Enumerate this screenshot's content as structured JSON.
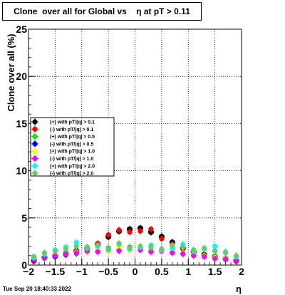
{
  "title": "Clone  over all for Global vs    η at pT > 0.11",
  "footer": "Tue Sep 20 18:40:33 2022",
  "chart_data": {
    "type": "scatter",
    "title": "Clone  over all for Global vs    η at pT > 0.11",
    "xlabel": "η",
    "ylabel": "Clone  over all (%)",
    "xlim": [
      -2,
      2
    ],
    "ylim": [
      0,
      25
    ],
    "x_ticks": [
      "−2",
      "−1.5",
      "−1",
      "−0.5",
      "0",
      "0.5",
      "1",
      "1.5",
      "2"
    ],
    "y_ticks": [
      "0",
      "5",
      "10",
      "15",
      "20",
      "25"
    ],
    "grid": true,
    "legend_position": "center-left",
    "x": [
      -1.9,
      -1.7,
      -1.5,
      -1.3,
      -1.1,
      -0.9,
      -0.7,
      -0.5,
      -0.3,
      -0.1,
      0.1,
      0.3,
      0.5,
      0.7,
      0.9,
      1.1,
      1.3,
      1.5,
      1.7,
      1.9
    ],
    "series": [
      {
        "name": "(+) with pT/|q| > 0.1",
        "color": "#000000",
        "marker": "circle",
        "values": [
          0.5,
          0.8,
          1.0,
          1.2,
          1.5,
          1.8,
          2.2,
          3.0,
          3.6,
          3.8,
          3.9,
          3.5,
          3.0,
          2.4,
          1.8,
          1.4,
          1.1,
          0.9,
          0.7,
          0.5
        ]
      },
      {
        "name": "(-) with pT/|q| > 0.1",
        "color": "#ff0000",
        "marker": "circle",
        "values": [
          0.4,
          0.7,
          0.9,
          1.1,
          1.4,
          1.8,
          2.3,
          3.2,
          3.7,
          3.5,
          3.6,
          3.8,
          2.8,
          2.2,
          1.7,
          1.3,
          1.0,
          0.8,
          0.6,
          0.4
        ]
      },
      {
        "name": "(+) with pT/|q| > 0.5",
        "color": "#00ee00",
        "marker": "circle",
        "values": [
          0.6,
          0.7,
          1.0,
          1.3,
          1.2,
          1.5,
          1.6,
          1.8,
          1.7,
          1.9,
          1.8,
          1.6,
          1.5,
          1.7,
          1.3,
          1.2,
          1.0,
          0.9,
          0.7,
          0.6
        ]
      },
      {
        "name": "(-) with pT/|q| > 0.5",
        "color": "#0000ff",
        "marker": "circle",
        "values": [
          0.5,
          0.8,
          0.9,
          1.1,
          1.3,
          1.4,
          1.5,
          1.7,
          1.6,
          1.8,
          1.7,
          1.5,
          1.6,
          1.4,
          1.2,
          1.1,
          0.9,
          0.8,
          0.6,
          0.5
        ]
      },
      {
        "name": "(+) with pT/|q| > 1.0",
        "color": "#ffff00",
        "marker": "circle",
        "values": [
          0.7,
          0.9,
          1.1,
          1.2,
          1.4,
          1.3,
          1.6,
          1.5,
          1.8,
          1.6,
          1.7,
          1.5,
          1.4,
          1.6,
          1.3,
          1.1,
          1.0,
          0.8,
          0.7,
          0.6
        ]
      },
      {
        "name": "(-) with pT/|q| > 1.0",
        "color": "#ff00ff",
        "marker": "circle",
        "values": [
          0.6,
          0.8,
          1.0,
          1.2,
          1.3,
          1.5,
          1.4,
          1.6,
          1.5,
          1.7,
          1.6,
          1.4,
          1.5,
          1.3,
          1.2,
          1.0,
          0.9,
          0.7,
          0.6,
          0.5
        ]
      },
      {
        "name": "(+) with pT/|q| > 2.0",
        "color": "#00ffff",
        "marker": "circle",
        "values": [
          0.8,
          1.2,
          1.6,
          1.9,
          2.4,
          1.8,
          2.0,
          1.6,
          2.2,
          1.7,
          1.9,
          2.1,
          1.6,
          1.8,
          2.2,
          1.5,
          1.7,
          2.0,
          1.4,
          0.9
        ]
      },
      {
        "name": "(-) with pT/|q| > 2.0",
        "color": "#66cc66",
        "marker": "circle",
        "values": [
          0.9,
          1.3,
          1.5,
          1.7,
          2.0,
          1.9,
          2.1,
          1.7,
          2.3,
          1.8,
          2.0,
          1.9,
          1.7,
          2.1,
          1.9,
          1.6,
          1.8,
          1.5,
          1.3,
          1.0
        ]
      }
    ]
  }
}
